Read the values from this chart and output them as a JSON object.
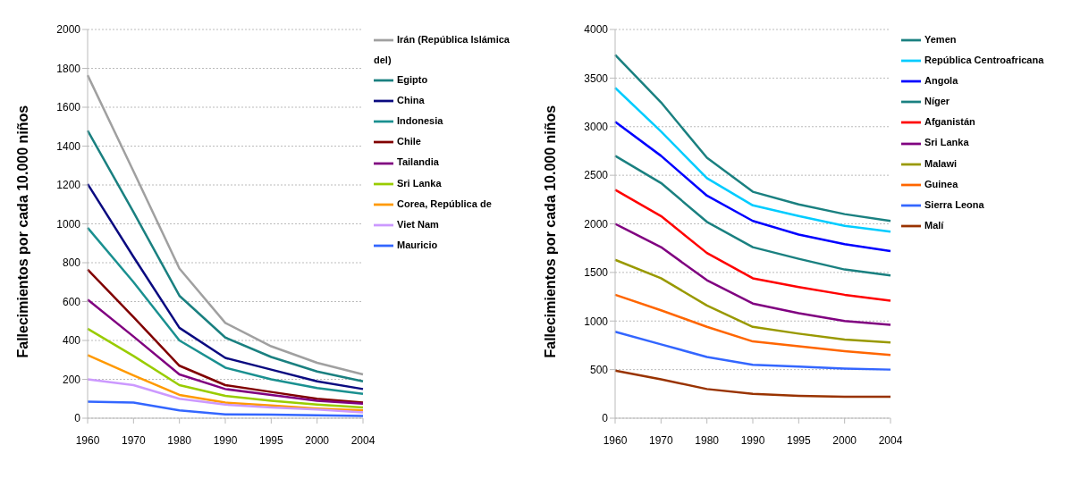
{
  "chart_data": [
    {
      "type": "line",
      "ylabel": "Fallecimientos por cada 10.000 niños",
      "categories": [
        "1960",
        "1970",
        "1980",
        "1990",
        "1995",
        "2000",
        "2004"
      ],
      "ylim": [
        0,
        2000
      ],
      "yticks": [
        0,
        200,
        400,
        600,
        800,
        1000,
        1200,
        1400,
        1600,
        1800,
        2000
      ],
      "grid": "y",
      "legend": "right",
      "marker": "none",
      "line_style": "solid",
      "series": [
        {
          "name": "Irán (República Islámica del)",
          "color": "#a0a0a0",
          "values": [
            1765,
            1270,
            770,
            490,
            370,
            285,
            225
          ]
        },
        {
          "name": "Egipto",
          "color": "#1a8080",
          "values": [
            1480,
            1060,
            630,
            415,
            315,
            240,
            190
          ]
        },
        {
          "name": "China",
          "color": "#0a0a80",
          "values": [
            1205,
            830,
            465,
            310,
            250,
            190,
            150
          ]
        },
        {
          "name": "Indonesia",
          "color": "#1a9090",
          "values": [
            980,
            700,
            400,
            260,
            200,
            155,
            125
          ]
        },
        {
          "name": "Chile",
          "color": "#800000",
          "values": [
            765,
            520,
            270,
            170,
            135,
            100,
            80
          ]
        },
        {
          "name": "Tailandia",
          "color": "#800080",
          "values": [
            610,
            420,
            225,
            150,
            120,
            90,
            75
          ]
        },
        {
          "name": "Sri Lanka",
          "color": "#99cc00",
          "values": [
            460,
            320,
            170,
            115,
            90,
            70,
            55
          ]
        },
        {
          "name": "Corea, República de",
          "color": "#ff9900",
          "values": [
            325,
            220,
            120,
            80,
            65,
            50,
            40
          ]
        },
        {
          "name": "Viet Nam",
          "color": "#cc99ff",
          "values": [
            200,
            170,
            100,
            70,
            55,
            45,
            30
          ]
        },
        {
          "name": "Mauricio",
          "color": "#3366ff",
          "values": [
            85,
            80,
            40,
            20,
            18,
            15,
            12
          ]
        }
      ]
    },
    {
      "type": "line",
      "ylabel": "Fallecimientos por cada 10.000 niños",
      "categories": [
        "1960",
        "1970",
        "1980",
        "1990",
        "1995",
        "2000",
        "2004"
      ],
      "ylim": [
        0,
        4000
      ],
      "yticks": [
        0,
        500,
        1000,
        1500,
        2000,
        2500,
        3000,
        3500,
        4000
      ],
      "grid": "y",
      "legend": "right",
      "marker": "none",
      "line_style": "solid",
      "series": [
        {
          "name": "Yemen",
          "color": "#1a8080",
          "values": [
            3740,
            3250,
            2680,
            2330,
            2200,
            2100,
            2030
          ]
        },
        {
          "name": "República Centroafricana",
          "color": "#00ccff",
          "values": [
            3400,
            2950,
            2470,
            2190,
            2080,
            1980,
            1920
          ]
        },
        {
          "name": "Angola",
          "color": "#0000ff",
          "values": [
            3050,
            2700,
            2290,
            2030,
            1890,
            1790,
            1720
          ]
        },
        {
          "name": "Níger",
          "color": "#1a8080",
          "values": [
            2700,
            2420,
            2020,
            1760,
            1640,
            1530,
            1470
          ]
        },
        {
          "name": "Afganistán",
          "color": "#ff0000",
          "values": [
            2350,
            2080,
            1700,
            1440,
            1350,
            1270,
            1210
          ]
        },
        {
          "name": "Sri Lanka",
          "color": "#800080",
          "values": [
            2000,
            1760,
            1420,
            1180,
            1080,
            1000,
            960
          ]
        },
        {
          "name": "Malawi",
          "color": "#999900",
          "values": [
            1630,
            1440,
            1160,
            940,
            870,
            810,
            780
          ]
        },
        {
          "name": "Guinea",
          "color": "#ff6600",
          "values": [
            1270,
            1110,
            940,
            790,
            740,
            690,
            650
          ]
        },
        {
          "name": "Sierra Leona",
          "color": "#3366ff",
          "values": [
            890,
            760,
            630,
            550,
            530,
            510,
            500
          ]
        },
        {
          "name": "Malí",
          "color": "#993300",
          "values": [
            490,
            400,
            300,
            250,
            230,
            220,
            220
          ]
        }
      ]
    }
  ]
}
